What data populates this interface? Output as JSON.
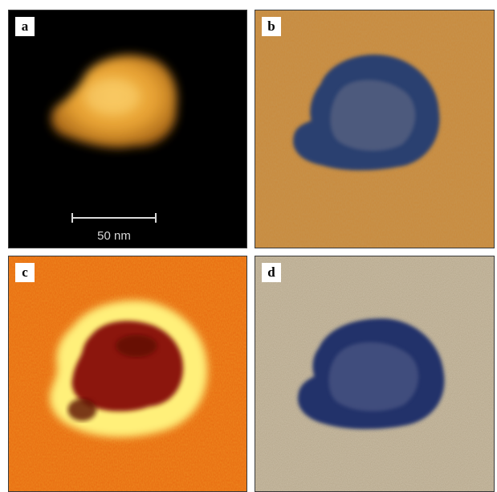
{
  "panels": [
    {
      "label": "a"
    },
    {
      "label": "b"
    },
    {
      "label": "c"
    },
    {
      "label": "d"
    }
  ],
  "scale_bar": {
    "text": "50 nm"
  },
  "colors": {
    "panel_a_background": "#000000",
    "panel_a_particle": "#f0b040",
    "panel_b_background": "#c98a3c",
    "panel_b_particle": "#2c3f70",
    "panel_c_background": "#e86a10",
    "panel_c_ring": "#fff07a",
    "panel_c_core": "#8c1808",
    "panel_d_background": "#b3a488",
    "panel_d_particle": "#22336a"
  }
}
